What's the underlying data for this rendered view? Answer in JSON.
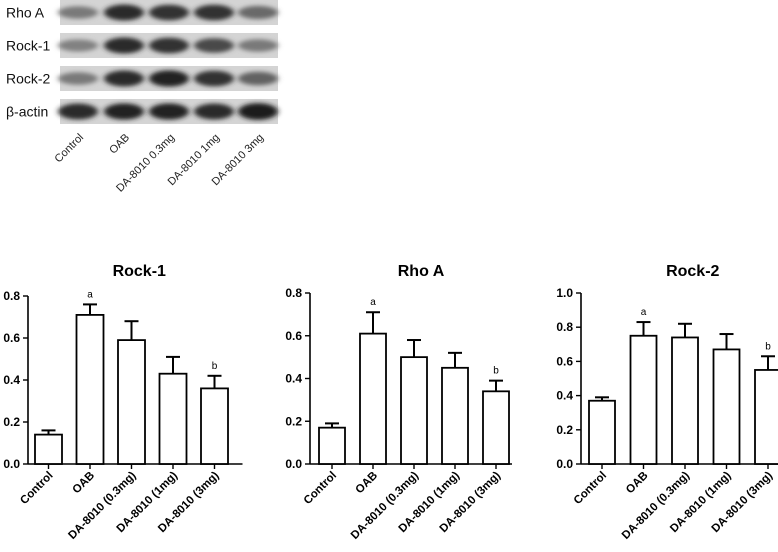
{
  "blot": {
    "rows": [
      {
        "label": "Rho A",
        "intensity": [
          0.35,
          0.85,
          0.8,
          0.8,
          0.45
        ]
      },
      {
        "label": "Rock-1",
        "intensity": [
          0.3,
          0.85,
          0.8,
          0.65,
          0.35
        ]
      },
      {
        "label": "Rock-2",
        "intensity": [
          0.35,
          0.85,
          0.9,
          0.8,
          0.5
        ]
      },
      {
        "label": "β-actin",
        "intensity": [
          0.85,
          0.9,
          0.9,
          0.85,
          0.95
        ]
      }
    ],
    "lanes": [
      "Control",
      "OAB",
      "DA-8010  0.3mg",
      "DA-8010  1mg",
      "DA-8010  3mg"
    ]
  },
  "chart_data": [
    {
      "type": "bar",
      "title": "Rock-1",
      "categories": [
        "Control",
        "OAB",
        "DA-8010 (0.3mg)",
        "DA-8010 (1mg)",
        "DA-8010 (3mg)"
      ],
      "values": [
        0.14,
        0.71,
        0.59,
        0.43,
        0.36
      ],
      "errors": [
        0.02,
        0.05,
        0.09,
        0.08,
        0.06
      ],
      "annotations": [
        "",
        "a",
        "",
        "",
        "b"
      ],
      "ylim": [
        0,
        0.8
      ],
      "yticks": [
        "0.0",
        "0.2",
        "0.4",
        "0.6",
        "0.8"
      ]
    },
    {
      "type": "bar",
      "title": "Rho A",
      "categories": [
        "Control",
        "OAB",
        "DA-8010 (0.3mg)",
        "DA-8010 (1mg)",
        "DA-8010 (3mg)"
      ],
      "values": [
        0.17,
        0.61,
        0.5,
        0.45,
        0.34
      ],
      "errors": [
        0.02,
        0.1,
        0.08,
        0.07,
        0.05
      ],
      "annotations": [
        "",
        "a",
        "",
        "",
        "b"
      ],
      "ylim": [
        0,
        0.8
      ],
      "yticks": [
        "0.0",
        "0.2",
        "0.4",
        "0.6",
        "0.8"
      ]
    },
    {
      "type": "bar",
      "title": "Rock-2",
      "categories": [
        "Control",
        "OAB",
        "DA-8010 (0.3mg)",
        "DA-8010 (1mg)",
        "DA-8010 (3mg)"
      ],
      "values": [
        0.37,
        0.75,
        0.74,
        0.67,
        0.55
      ],
      "errors": [
        0.02,
        0.08,
        0.08,
        0.09,
        0.08
      ],
      "annotations": [
        "",
        "a",
        "",
        "",
        "b"
      ],
      "ylim": [
        0,
        1.0
      ],
      "yticks": [
        "0.0",
        "0.2",
        "0.4",
        "0.6",
        "0.8",
        "1.0"
      ]
    }
  ]
}
